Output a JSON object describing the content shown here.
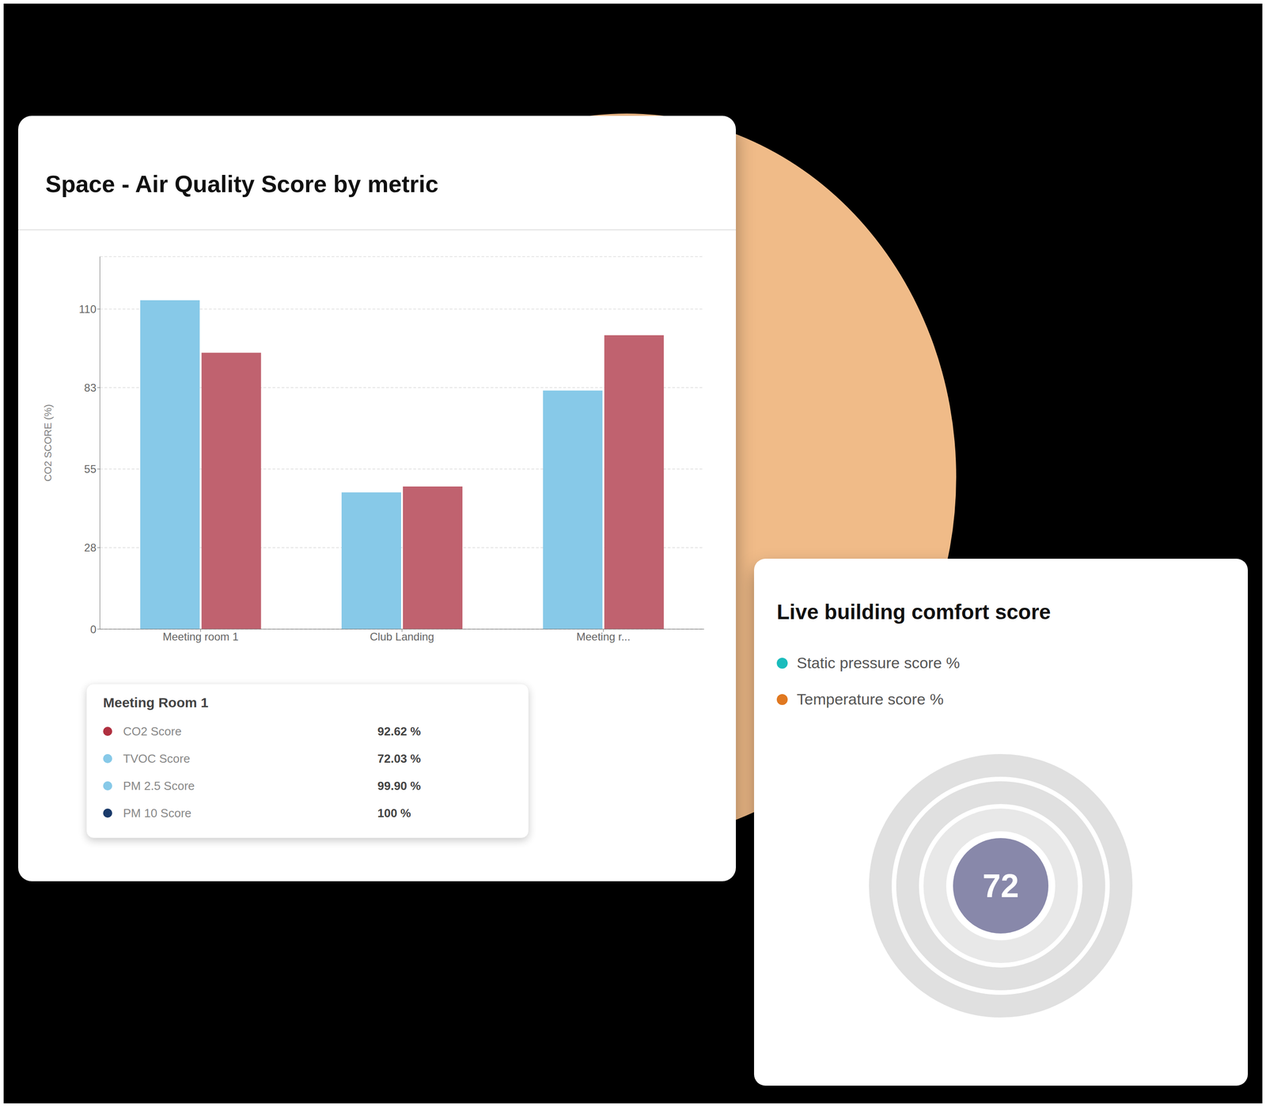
{
  "chart_data": {
    "type": "bar",
    "title": "Space - Air Quality Score by metric",
    "ylabel": "CO2 SCORE (%)",
    "categories": [
      "Meeting room 1",
      "Club Landing",
      "Meeting r..."
    ],
    "series": [
      {
        "color": "#87c9e8",
        "values": [
          113,
          47,
          82
        ]
      },
      {
        "color": "#c0626f",
        "values": [
          95,
          49,
          101
        ]
      }
    ],
    "ylim": [
      0,
      128
    ],
    "yticks": [
      0,
      28,
      55,
      83,
      110
    ],
    "grid": true,
    "annotations": [
      {
        "text": "Meeting Room 1",
        "items": [
          {
            "text": "CO2 Score",
            "detail": "92.62 %",
            "color": "#b03040"
          },
          {
            "text": "TVOC Score",
            "detail": "72.03 %",
            "color": "#87c9e8"
          },
          {
            "text": "PM 2.5 Score",
            "detail": "99.90 %",
            "color": "#87c9e8"
          },
          {
            "text": "PM 10 Score",
            "detail": "100 %",
            "color": "#1a3a6a"
          }
        ]
      },
      {
        "text": "Live building comfort score",
        "detail": "72",
        "color": "#8888aa",
        "items": [
          {
            "text": "Static pressure score %",
            "color": "#1abcbc"
          },
          {
            "text": "Temperature score %",
            "color": "#e07820"
          }
        ]
      }
    ]
  }
}
